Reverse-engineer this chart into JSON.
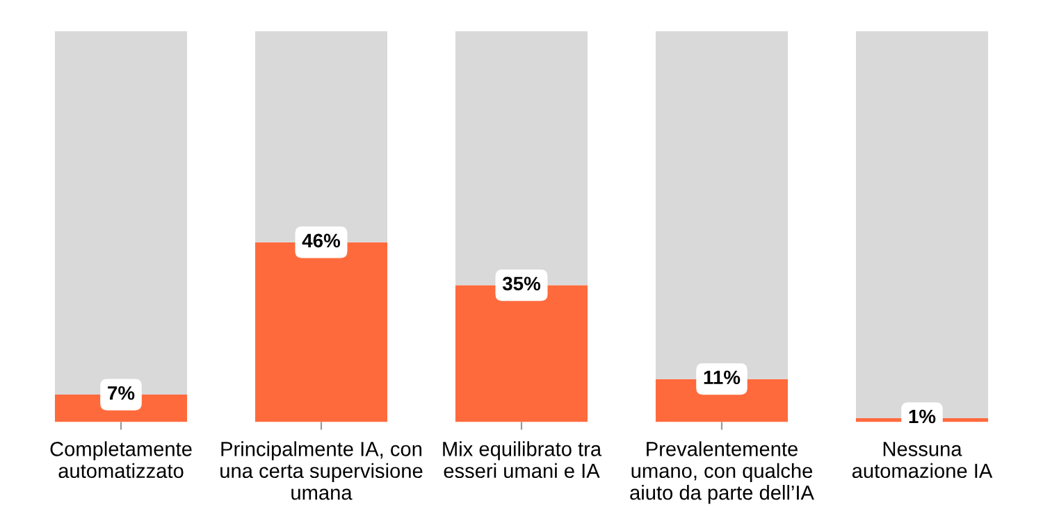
{
  "chart_data": {
    "type": "bar",
    "stacked": true,
    "categories": [
      "Completamente\nautomatizzato",
      "Principalmente IA, con\nuna certa supervisione\numana",
      "Mix equilibrato tra\nesseri umani e IA",
      "Prevalentemente\numano, con qualche\naiuto da parte dell’IA",
      "Nessuna\nautomazione IA"
    ],
    "series": [
      {
        "color": "#ff6a3d",
        "values": [
          7,
          46,
          35,
          11,
          1
        ],
        "value_labels": [
          "7%",
          "46%",
          "35%",
          "11%",
          "1%"
        ]
      },
      {
        "color": "#d9d9d9",
        "values": [
          93,
          54,
          65,
          89,
          99
        ]
      }
    ],
    "ylim": [
      0,
      100
    ],
    "tick_labels": "x",
    "grid": false,
    "legend": false
  }
}
